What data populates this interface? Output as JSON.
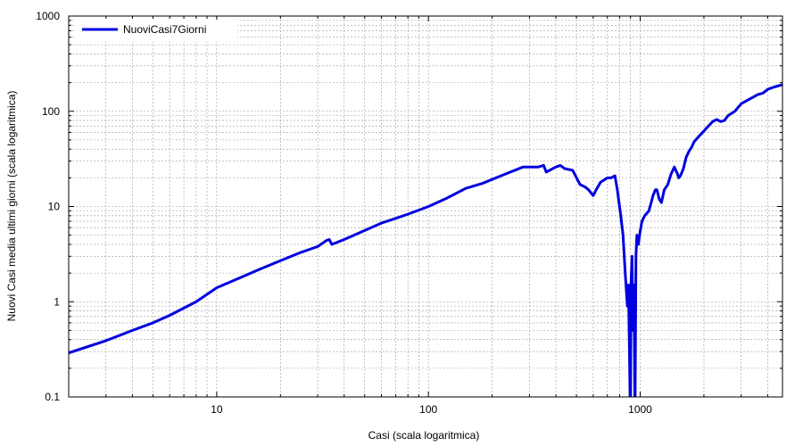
{
  "chart_data": {
    "type": "line",
    "xlabel": "Casi (scala logaritmica)",
    "ylabel": "Nuovi Casi media ultimi giorni (scala logaritmica)",
    "xscale": "log",
    "yscale": "log",
    "xlim": [
      2,
      4700
    ],
    "ylim": [
      0.1,
      1000
    ],
    "x_ticks": [
      {
        "value": 10,
        "label": "10"
      },
      {
        "value": 100,
        "label": "100"
      },
      {
        "value": 1000,
        "label": "1000"
      }
    ],
    "y_ticks": [
      {
        "value": 0.1,
        "label": "0.1"
      },
      {
        "value": 1,
        "label": "1"
      },
      {
        "value": 10,
        "label": "10"
      },
      {
        "value": 100,
        "label": "100"
      },
      {
        "value": 1000,
        "label": "1000"
      }
    ],
    "grid": true,
    "legend_position": "top-left",
    "series": [
      {
        "name": "NuoviCasi7Giorni",
        "color": "#0000e0",
        "x": [
          2,
          3,
          4,
          5,
          6,
          8,
          10,
          13,
          16,
          20,
          25,
          30,
          33,
          34,
          35,
          40,
          50,
          60,
          70,
          80,
          100,
          120,
          150,
          180,
          220,
          280,
          330,
          350,
          360,
          400,
          420,
          440,
          480,
          520,
          550,
          570,
          600,
          620,
          650,
          700,
          730,
          760,
          780,
          790,
          810,
          830,
          850,
          870,
          880,
          890,
          900,
          905,
          915,
          925,
          935,
          945,
          955,
          965,
          980,
          1000,
          1020,
          1050,
          1100,
          1150,
          1180,
          1200,
          1230,
          1260,
          1300,
          1350,
          1400,
          1450,
          1500,
          1520,
          1550,
          1600,
          1650,
          1700,
          1750,
          1800,
          1900,
          2000,
          2100,
          2200,
          2300,
          2400,
          2500,
          2600,
          2800,
          3000,
          3200,
          3400,
          3600,
          3800,
          4000,
          4300,
          4700
        ],
        "y": [
          0.29,
          0.39,
          0.5,
          0.6,
          0.72,
          1.0,
          1.4,
          1.8,
          2.2,
          2.7,
          3.3,
          3.8,
          4.4,
          4.5,
          4.0,
          4.5,
          5.6,
          6.7,
          7.5,
          8.3,
          10,
          12,
          15.5,
          17.5,
          21,
          26,
          26,
          27,
          23,
          26,
          27,
          25,
          24,
          17,
          16,
          15,
          13,
          15,
          18,
          20,
          20,
          21,
          15,
          12,
          8,
          5,
          2,
          0.9,
          1.5,
          0.3,
          0.05,
          1.5,
          3,
          0.5,
          1.5,
          0.05,
          3,
          5,
          4,
          5.5,
          7,
          8,
          9,
          13,
          15,
          15,
          12,
          11,
          15,
          17,
          22,
          26,
          22,
          20,
          21,
          25,
          33,
          38,
          42,
          48,
          55,
          62,
          70,
          78,
          82,
          78,
          80,
          90,
          100,
          120,
          130,
          140,
          150,
          155,
          170,
          180,
          190
        ]
      }
    ]
  }
}
